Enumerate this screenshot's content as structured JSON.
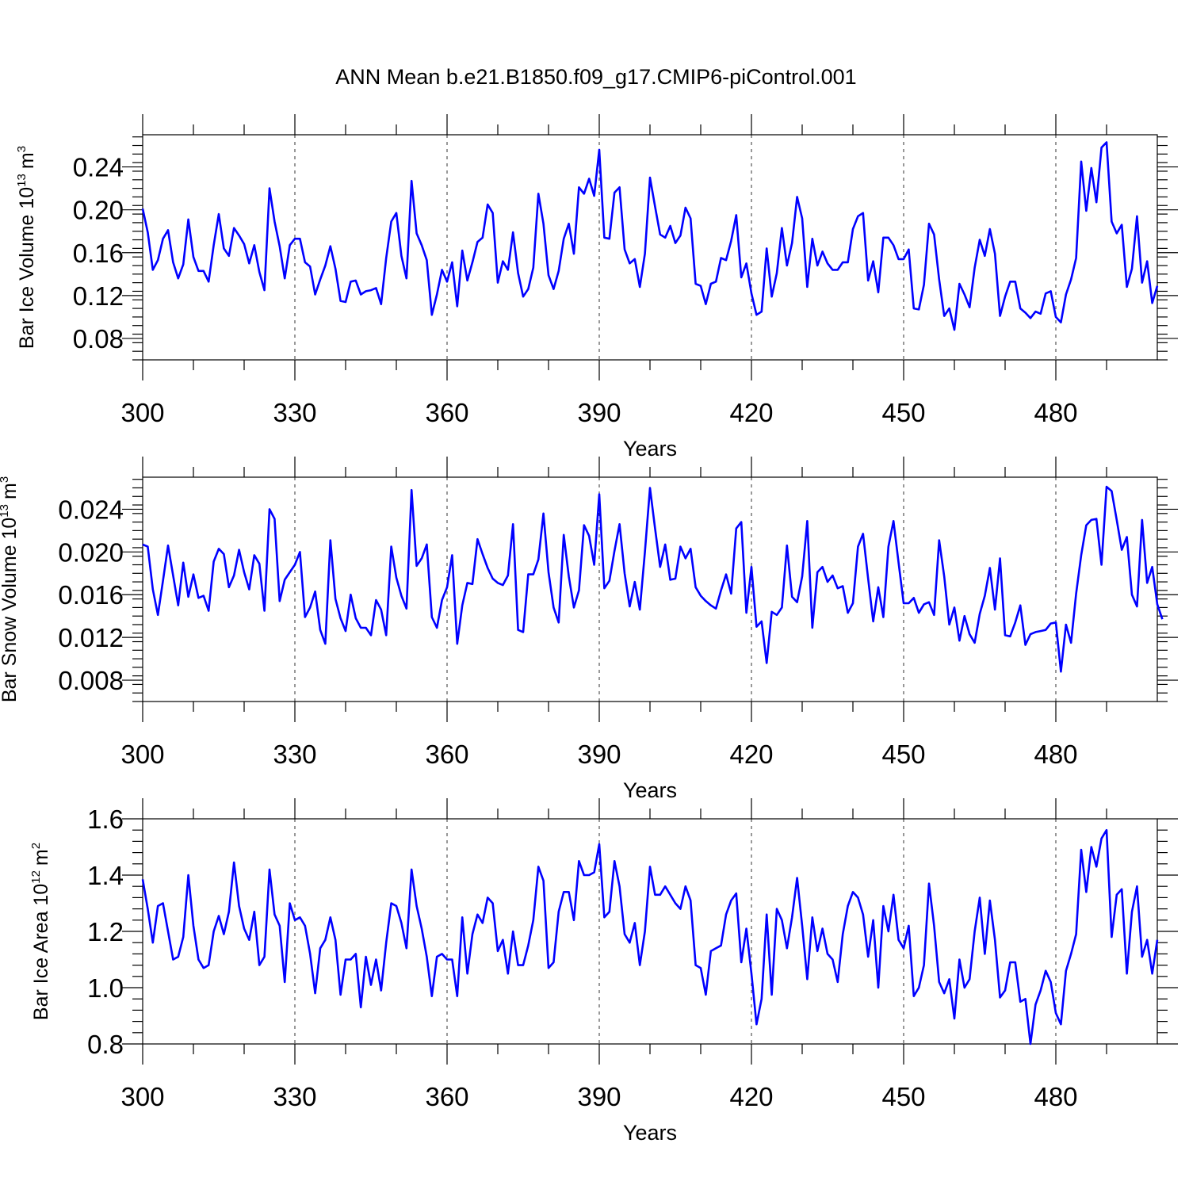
{
  "figure_title": "ANN Mean b.e21.B1850.f09_g17.CMIP6-piControl.001",
  "colors": {
    "series": "#0000ff"
  },
  "chart_data": [
    {
      "type": "line",
      "title": "ANN Mean b.e21.B1850.f09_g17.CMIP6-piControl.001",
      "xlabel": "Years",
      "ylabel": "Bar Ice Volume 10",
      "ylabel_exp": "13",
      "ylabel_unit": "m",
      "ylabel_unit_exp": "3",
      "xlim": [
        300,
        500
      ],
      "ylim": [
        0.06,
        0.27
      ],
      "xticks": [
        "300",
        "330",
        "360",
        "390",
        "420",
        "450",
        "480"
      ],
      "yticks": [
        "0.08",
        "0.12",
        "0.16",
        "0.20",
        "0.24"
      ],
      "x_start": 300,
      "values": [
        0.201,
        0.179,
        0.144,
        0.153,
        0.173,
        0.181,
        0.151,
        0.136,
        0.149,
        0.191,
        0.156,
        0.143,
        0.143,
        0.133,
        0.167,
        0.196,
        0.164,
        0.157,
        0.183,
        0.176,
        0.168,
        0.15,
        0.167,
        0.142,
        0.125,
        0.22,
        0.189,
        0.166,
        0.136,
        0.167,
        0.173,
        0.173,
        0.151,
        0.147,
        0.121,
        0.135,
        0.148,
        0.166,
        0.145,
        0.115,
        0.114,
        0.133,
        0.134,
        0.121,
        0.124,
        0.125,
        0.127,
        0.112,
        0.155,
        0.189,
        0.197,
        0.157,
        0.136,
        0.227,
        0.178,
        0.167,
        0.153,
        0.102,
        0.121,
        0.144,
        0.133,
        0.151,
        0.11,
        0.162,
        0.134,
        0.151,
        0.17,
        0.174,
        0.205,
        0.197,
        0.132,
        0.152,
        0.144,
        0.179,
        0.141,
        0.119,
        0.126,
        0.146,
        0.215,
        0.187,
        0.139,
        0.126,
        0.143,
        0.173,
        0.187,
        0.159,
        0.221,
        0.215,
        0.229,
        0.213,
        0.256,
        0.174,
        0.173,
        0.216,
        0.221,
        0.163,
        0.15,
        0.154,
        0.128,
        0.159,
        0.23,
        0.203,
        0.177,
        0.174,
        0.185,
        0.169,
        0.176,
        0.202,
        0.192,
        0.131,
        0.129,
        0.112,
        0.131,
        0.133,
        0.155,
        0.153,
        0.171,
        0.195,
        0.137,
        0.15,
        0.122,
        0.102,
        0.105,
        0.164,
        0.119,
        0.141,
        0.183,
        0.148,
        0.169,
        0.212,
        0.192,
        0.128,
        0.173,
        0.148,
        0.161,
        0.15,
        0.144,
        0.144,
        0.151,
        0.151,
        0.182,
        0.194,
        0.197,
        0.134,
        0.152,
        0.123,
        0.174,
        0.174,
        0.167,
        0.154,
        0.154,
        0.163,
        0.108,
        0.107,
        0.13,
        0.187,
        0.177,
        0.135,
        0.101,
        0.108,
        0.088,
        0.131,
        0.121,
        0.109,
        0.146,
        0.172,
        0.157,
        0.182,
        0.159,
        0.101,
        0.119,
        0.133,
        0.133,
        0.108,
        0.104,
        0.099,
        0.105,
        0.103,
        0.122,
        0.124,
        0.1,
        0.095,
        0.121,
        0.135,
        0.155,
        0.245,
        0.199,
        0.239,
        0.207,
        0.258,
        0.263,
        0.189,
        0.178,
        0.186,
        0.128,
        0.145,
        0.194,
        0.132,
        0.152,
        0.113,
        0.129
      ]
    },
    {
      "type": "line",
      "xlabel": "Years",
      "ylabel": "Bar Snow Volume 10",
      "ylabel_exp": "13",
      "ylabel_unit": "m",
      "ylabel_unit_exp": "3",
      "xlim": [
        300,
        500
      ],
      "ylim": [
        0.006,
        0.027
      ],
      "xticks": [
        "300",
        "330",
        "360",
        "390",
        "420",
        "450",
        "480"
      ],
      "yticks": [
        "0.008",
        "0.012",
        "0.016",
        "0.020",
        "0.024"
      ],
      "x_start": 300,
      "values": [
        0.0207,
        0.0205,
        0.0165,
        0.0141,
        0.0173,
        0.0206,
        0.0178,
        0.015,
        0.019,
        0.0158,
        0.0179,
        0.0157,
        0.0159,
        0.0145,
        0.0191,
        0.0203,
        0.0198,
        0.0167,
        0.0178,
        0.0202,
        0.0181,
        0.0165,
        0.0197,
        0.0189,
        0.0145,
        0.024,
        0.0231,
        0.0154,
        0.0174,
        0.0181,
        0.0188,
        0.02,
        0.0139,
        0.0148,
        0.0163,
        0.0127,
        0.0114,
        0.0211,
        0.0156,
        0.0138,
        0.0126,
        0.016,
        0.0138,
        0.0129,
        0.0129,
        0.0122,
        0.0155,
        0.0146,
        0.0122,
        0.0205,
        0.0176,
        0.0159,
        0.0147,
        0.0258,
        0.0187,
        0.0194,
        0.0207,
        0.0139,
        0.0129,
        0.0155,
        0.0167,
        0.0197,
        0.0114,
        0.015,
        0.0171,
        0.017,
        0.0212,
        0.0198,
        0.0185,
        0.0175,
        0.0171,
        0.0169,
        0.0178,
        0.0226,
        0.0127,
        0.0125,
        0.0179,
        0.0179,
        0.0193,
        0.0236,
        0.0181,
        0.0148,
        0.0134,
        0.0216,
        0.0177,
        0.0148,
        0.0164,
        0.0225,
        0.0215,
        0.0188,
        0.0254,
        0.0166,
        0.0173,
        0.0201,
        0.0226,
        0.018,
        0.0149,
        0.0172,
        0.0146,
        0.02,
        0.026,
        0.0222,
        0.0186,
        0.0207,
        0.0174,
        0.0175,
        0.0205,
        0.0194,
        0.0203,
        0.0167,
        0.0159,
        0.0154,
        0.015,
        0.0147,
        0.0164,
        0.0179,
        0.0161,
        0.0222,
        0.0228,
        0.0143,
        0.0186,
        0.013,
        0.0135,
        0.0096,
        0.0144,
        0.0141,
        0.0148,
        0.0206,
        0.0158,
        0.0153,
        0.0177,
        0.0229,
        0.0129,
        0.0181,
        0.0186,
        0.0172,
        0.0178,
        0.0166,
        0.0168,
        0.0143,
        0.0152,
        0.0205,
        0.0217,
        0.0175,
        0.0135,
        0.0167,
        0.0139,
        0.0205,
        0.0229,
        0.019,
        0.0152,
        0.0152,
        0.0157,
        0.0143,
        0.0151,
        0.0153,
        0.0141,
        0.0211,
        0.0177,
        0.0132,
        0.0148,
        0.0117,
        0.014,
        0.0123,
        0.0115,
        0.0142,
        0.0159,
        0.0185,
        0.0146,
        0.0194,
        0.0122,
        0.0121,
        0.0134,
        0.015,
        0.0113,
        0.0123,
        0.0125,
        0.0126,
        0.0127,
        0.0133,
        0.0134,
        0.0088,
        0.0132,
        0.0115,
        0.0161,
        0.0197,
        0.0225,
        0.023,
        0.0231,
        0.0188,
        0.0261,
        0.0257,
        0.023,
        0.0202,
        0.0214,
        0.016,
        0.0149,
        0.023,
        0.0171,
        0.0186,
        0.0151,
        0.0137
      ]
    },
    {
      "type": "line",
      "xlabel": "Years",
      "ylabel": "Bar Ice Area 10",
      "ylabel_exp": "12",
      "ylabel_unit": "m",
      "ylabel_unit_exp": "2",
      "xlim": [
        300,
        500
      ],
      "ylim": [
        0.8,
        1.6
      ],
      "xticks": [
        "300",
        "330",
        "360",
        "390",
        "420",
        "450",
        "480"
      ],
      "yticks": [
        "0.8",
        "1.0",
        "1.2",
        "1.4",
        "1.6"
      ],
      "x_start": 300,
      "values": [
        1.385,
        1.28,
        1.16,
        1.29,
        1.3,
        1.2,
        1.1,
        1.11,
        1.18,
        1.4,
        1.22,
        1.1,
        1.07,
        1.08,
        1.2,
        1.255,
        1.19,
        1.27,
        1.445,
        1.29,
        1.21,
        1.17,
        1.27,
        1.08,
        1.11,
        1.42,
        1.26,
        1.22,
        1.02,
        1.3,
        1.24,
        1.25,
        1.22,
        1.12,
        0.98,
        1.14,
        1.17,
        1.25,
        1.17,
        0.975,
        1.1,
        1.1,
        1.12,
        0.93,
        1.11,
        1.01,
        1.1,
        0.99,
        1.16,
        1.3,
        1.29,
        1.23,
        1.14,
        1.42,
        1.29,
        1.21,
        1.11,
        0.97,
        1.11,
        1.12,
        1.1,
        1.1,
        0.97,
        1.25,
        1.05,
        1.19,
        1.26,
        1.23,
        1.32,
        1.3,
        1.13,
        1.17,
        1.05,
        1.2,
        1.08,
        1.08,
        1.15,
        1.24,
        1.43,
        1.38,
        1.07,
        1.09,
        1.27,
        1.34,
        1.34,
        1.24,
        1.45,
        1.4,
        1.4,
        1.41,
        1.51,
        1.25,
        1.27,
        1.45,
        1.36,
        1.19,
        1.16,
        1.23,
        1.08,
        1.2,
        1.43,
        1.33,
        1.33,
        1.36,
        1.33,
        1.3,
        1.28,
        1.36,
        1.31,
        1.08,
        1.07,
        0.975,
        1.13,
        1.14,
        1.15,
        1.26,
        1.31,
        1.335,
        1.09,
        1.21,
        1.05,
        0.87,
        0.96,
        1.26,
        0.975,
        1.28,
        1.24,
        1.14,
        1.25,
        1.39,
        1.22,
        1.03,
        1.25,
        1.13,
        1.21,
        1.12,
        1.1,
        1.02,
        1.19,
        1.29,
        1.34,
        1.32,
        1.26,
        1.11,
        1.24,
        1.0,
        1.29,
        1.2,
        1.33,
        1.17,
        1.14,
        1.22,
        0.97,
        1.0,
        1.08,
        1.37,
        1.22,
        1.02,
        0.98,
        1.03,
        0.89,
        1.1,
        1.0,
        1.03,
        1.2,
        1.32,
        1.12,
        1.31,
        1.17,
        0.965,
        0.99,
        1.09,
        1.09,
        0.95,
        0.96,
        0.8,
        0.94,
        0.99,
        1.06,
        1.02,
        0.91,
        0.87,
        1.06,
        1.12,
        1.19,
        1.49,
        1.34,
        1.5,
        1.43,
        1.53,
        1.56,
        1.18,
        1.33,
        1.35,
        1.05,
        1.27,
        1.36,
        1.11,
        1.17,
        1.05,
        1.17
      ]
    }
  ]
}
